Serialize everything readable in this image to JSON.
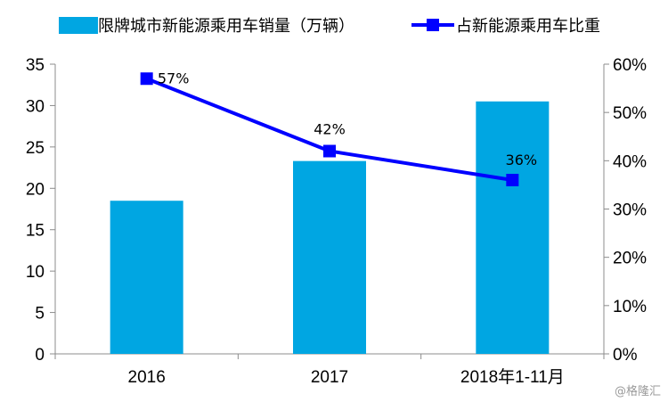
{
  "chart_data": {
    "type": "bar+line",
    "categories": [
      "2016",
      "2017",
      "2018年1-11月"
    ],
    "series": [
      {
        "name": "限牌城市新能源乘用车销量（万辆）",
        "kind": "bar",
        "axis": "left",
        "values": [
          18.5,
          23.3,
          30.5
        ],
        "color": "#00A6E2"
      },
      {
        "name": "占新能源乘用车比重",
        "kind": "line",
        "axis": "right",
        "values": [
          57,
          42,
          36
        ],
        "labels": [
          "57%",
          "42%",
          "36%"
        ],
        "color": "#0000FF"
      }
    ],
    "y_left": {
      "min": 0,
      "max": 35,
      "step": 5,
      "ticks": [
        "0",
        "5",
        "10",
        "15",
        "20",
        "25",
        "30",
        "35"
      ]
    },
    "y_right": {
      "min": 0,
      "max": 60,
      "step": 10,
      "ticks": [
        "0%",
        "10%",
        "20%",
        "30%",
        "40%",
        "50%",
        "60%"
      ]
    },
    "grid": false,
    "legend_position": "top"
  },
  "watermark": "@格隆汇"
}
